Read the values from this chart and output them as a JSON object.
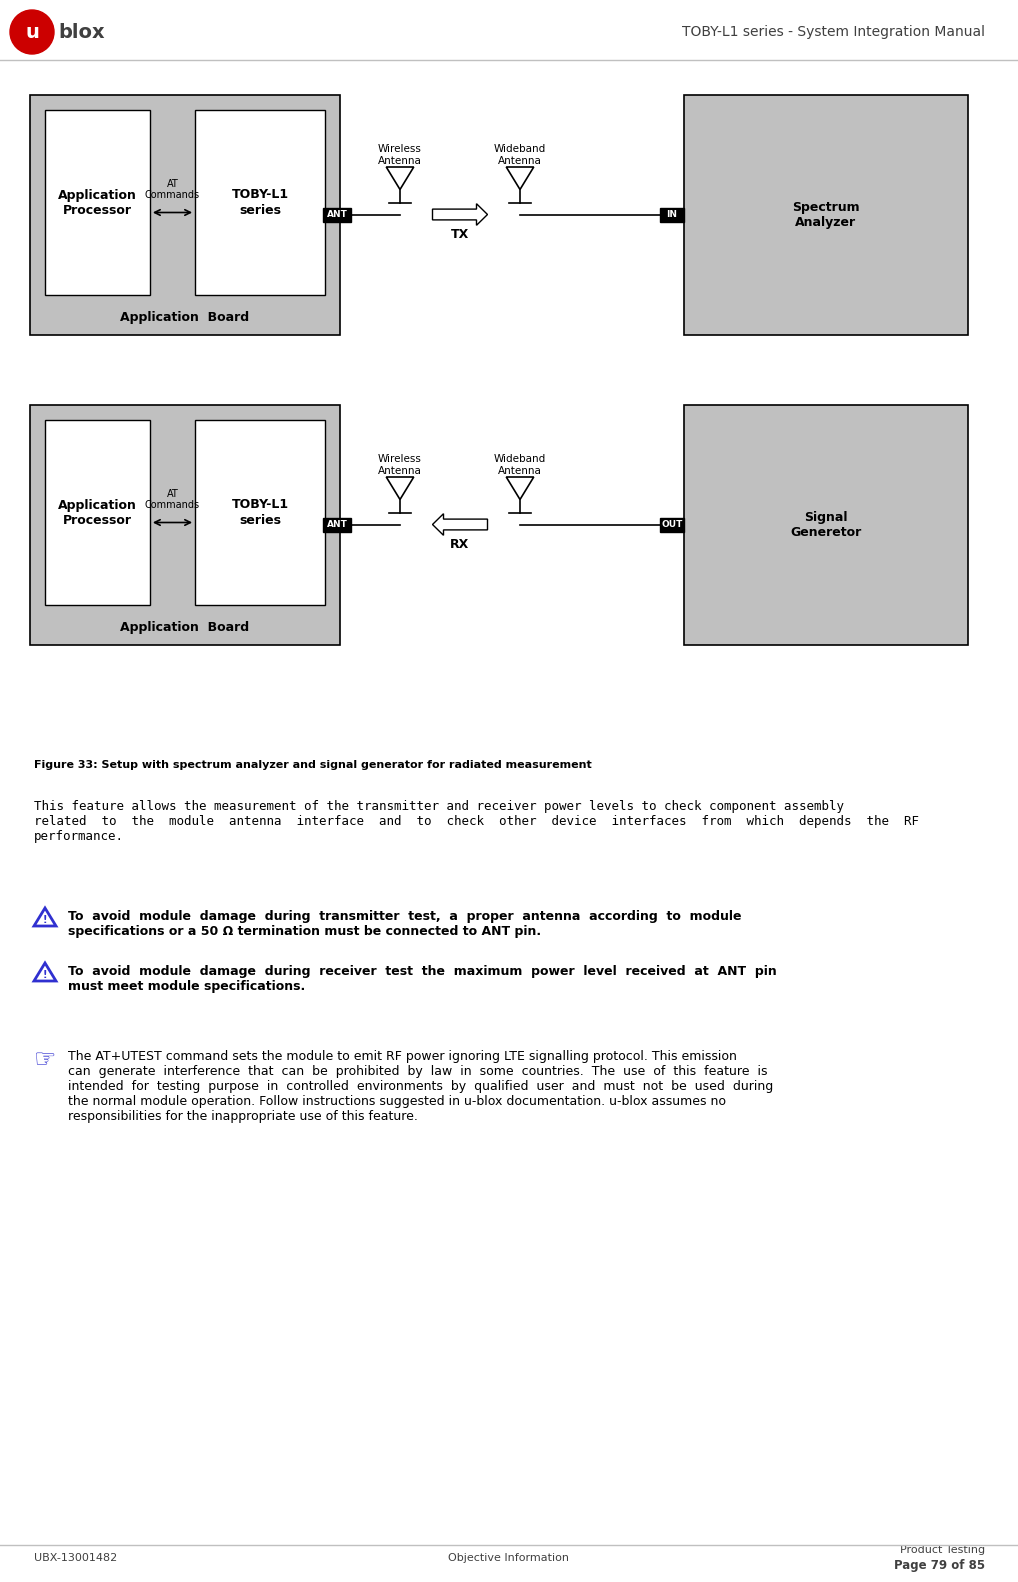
{
  "page_title": "TOBY-L1 series - System Integration Manual",
  "logo_text": "ublox",
  "footer_left": "UBX-13001482",
  "footer_center": "Objective Information",
  "footer_right_line1": "Product Testing",
  "footer_right_line2": "Page 79 of 85",
  "figure_caption": "Figure 33: Setup with spectrum analyzer and signal generator for radiated measurement",
  "diagram1": {
    "app_board_label": "Application  Board",
    "app_processor_label": "Application\nProcessor",
    "toby_label": "TOBY-L1\nseries",
    "at_commands_label": "AT\nCommands",
    "ant_label": "ANT",
    "wireless_antenna_label": "Wireless\nAntenna",
    "wideband_antenna_label": "Wideband\nAntenna",
    "tx_label": "TX",
    "in_label": "IN",
    "right_box_label": "Spectrum\nAnalyzer",
    "arrow_direction": "right"
  },
  "diagram2": {
    "app_board_label": "Application  Board",
    "app_processor_label": "Application\nProcessor",
    "toby_label": "TOBY-L1\nseries",
    "at_commands_label": "AT\nCommands",
    "ant_label": "ANT",
    "wireless_antenna_label": "Wireless\nAntenna",
    "wideband_antenna_label": "Wideband\nAntenna",
    "rx_label": "RX",
    "out_label": "OUT",
    "right_box_label": "Signal\nGeneretor",
    "arrow_direction": "left"
  },
  "para1": "This feature allows the measurement of the transmitter and receiver power levels to check component assembly\nrelated  to  the  module  antenna  interface  and  to  check  other  device  interfaces  from  which  depends  the  RF\nperformance.",
  "warning1": "To  avoid  module  damage  during  transmitter  test,  a  proper  antenna  according  to  module\nspecifications or a 50 Ω termination must be connected to ANT pin.",
  "warning2": "To  avoid  module  damage  during  receiver  test  the  maximum  power  level  received  at  ANT  pin\nmust meet module specifications.",
  "note1": "The AT+UTEST command sets the module to emit RF power ignoring LTE signalling protocol. This emission\ncan  generate  interference  that  can  be  prohibited  by  law  in  some  countries.  The  use  of  this  feature  is\nintended  for  testing  purpose  in  controlled  environments  by  qualified  user  and  must  not  be  used  during\nthe normal module operation. Follow instructions suggested in u-blox documentation. u-blox assumes no\nresponsibilities for the inappropriate use of this feature.",
  "gray_bg": "#c0c0c0",
  "white": "#ffffff",
  "black": "#000000",
  "dark_gray": "#404040"
}
